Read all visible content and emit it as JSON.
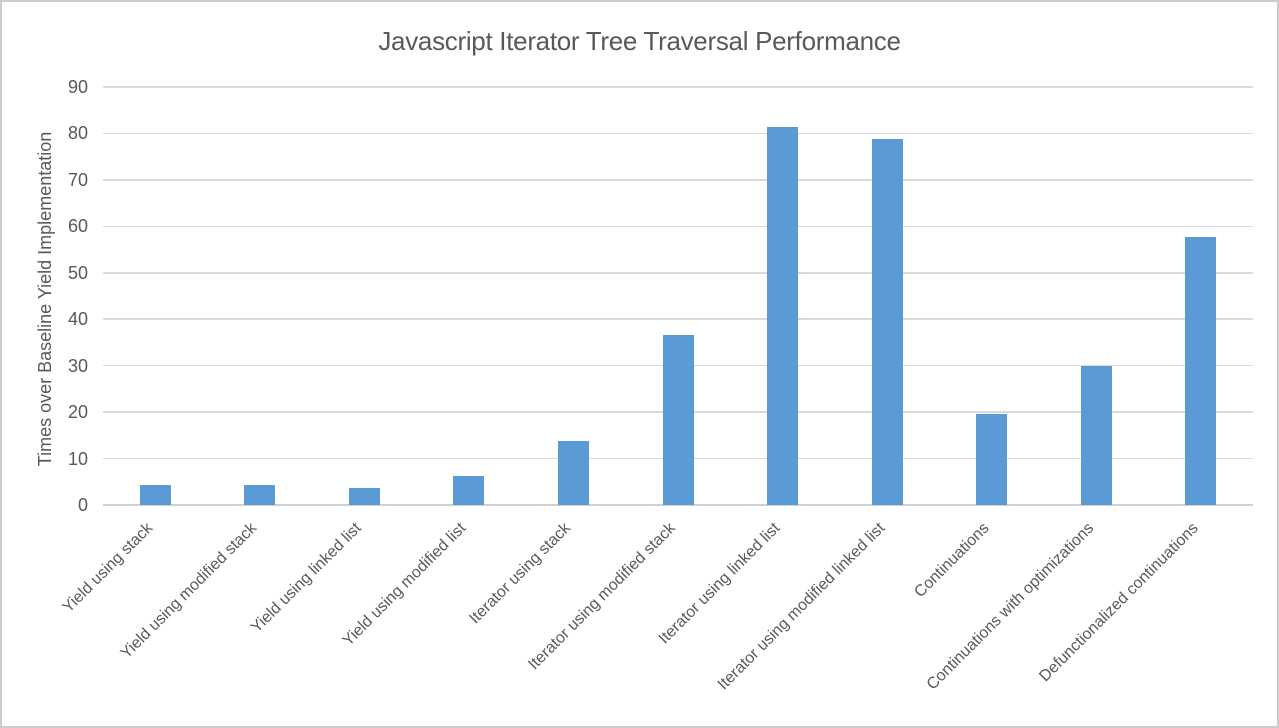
{
  "chart_data": {
    "type": "bar",
    "title": "Javascript Iterator Tree Traversal Performance",
    "xlabel": "",
    "ylabel": "Times over Baseline Yield Implementation",
    "categories": [
      "Yield using stack",
      "Yield using modified stack",
      "Yield using linked list",
      "Yield using modified list",
      "Iterator using stack",
      "Iterator using modified stack",
      "Iterator using linked list",
      "Iterator using modified linked list",
      "Continuations",
      "Continuations with optimizations",
      "Defunctionalized continuations"
    ],
    "values": [
      4.3,
      4.4,
      3.6,
      6.3,
      13.7,
      36.5,
      81.4,
      78.9,
      19.6,
      29.9,
      57.8
    ],
    "ylim": [
      0,
      90
    ],
    "y_ticks": [
      0,
      10,
      20,
      30,
      40,
      50,
      60,
      70,
      80,
      90
    ],
    "grid": "horizontal",
    "legend": "none",
    "colors": {
      "bar": "#5B9BD5",
      "gridline": "#D9D9D9",
      "axis_line": "#D0D0D0",
      "text": "#595959",
      "border": "#CCCCCC",
      "background": "#FFFFFF"
    }
  }
}
